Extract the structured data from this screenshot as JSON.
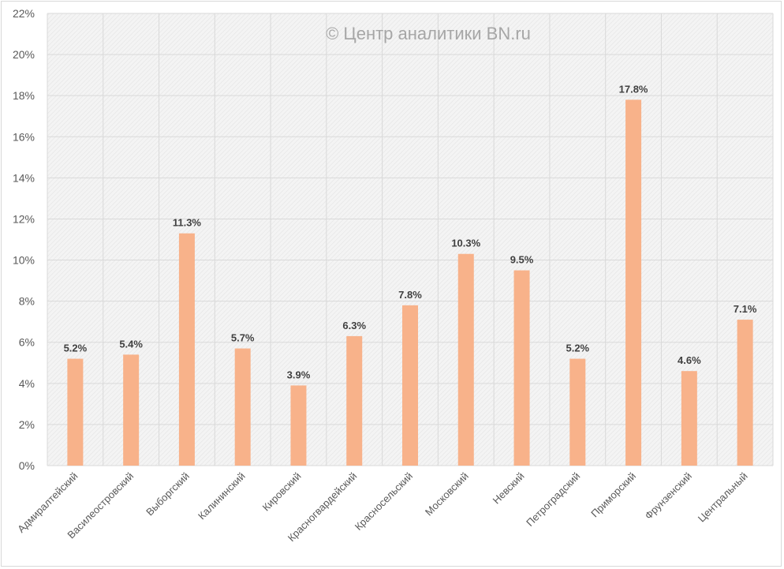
{
  "chart_data": {
    "type": "bar",
    "title": "",
    "watermark": "© Центр аналитики BN.ru",
    "xlabel": "",
    "ylabel": "",
    "ylim": [
      0,
      22
    ],
    "yticks": [
      0,
      2,
      4,
      6,
      8,
      10,
      12,
      14,
      16,
      18,
      20,
      22
    ],
    "ytick_labels": [
      "0%",
      "2%",
      "4%",
      "6%",
      "8%",
      "10%",
      "12%",
      "14%",
      "16%",
      "18%",
      "20%",
      "22%"
    ],
    "grid": true,
    "legend": "none",
    "categories": [
      "Адмиралтейский",
      "Василеостровский",
      "Выборгский",
      "Калининский",
      "Кировский",
      "Красногвардейский",
      "Красносельский",
      "Московский",
      "Невский",
      "Петроградский",
      "Приморский",
      "Фрунзенский",
      "Центральный"
    ],
    "values": [
      5.2,
      5.4,
      11.3,
      5.7,
      3.9,
      6.3,
      7.8,
      10.3,
      9.5,
      5.2,
      17.8,
      4.6,
      7.1
    ],
    "data_labels": [
      "5.2%",
      "5.4%",
      "11.3%",
      "5.7%",
      "3.9%",
      "6.3%",
      "7.8%",
      "10.3%",
      "9.5%",
      "5.2%",
      "17.8%",
      "4.6%",
      "7.1%"
    ],
    "colors": {
      "bar": "#F8B28A",
      "plot_bg": "#F2F2F2",
      "grid": "#D9D9D9"
    }
  }
}
